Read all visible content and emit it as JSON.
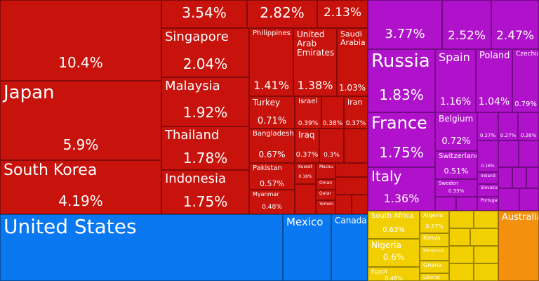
{
  "chart_data": {
    "type": "treemap",
    "groups": [
      {
        "color": "#c8120c",
        "items": [
          {
            "value": 10.4,
            "label": "10.4%"
          },
          {
            "name": "Japan",
            "value": 5.9,
            "label": "5.9%"
          },
          {
            "name": "South Korea",
            "value": 4.19,
            "label": "4.19%"
          },
          {
            "value": 3.54,
            "label": "3.54%"
          },
          {
            "value": 2.82,
            "label": "2.82%"
          },
          {
            "value": 2.13,
            "label": "2.13%"
          },
          {
            "name": "Singapore",
            "value": 2.04,
            "label": "2.04%"
          },
          {
            "name": "Malaysia",
            "value": 1.92,
            "label": "1.92%"
          },
          {
            "name": "Thailand",
            "value": 1.78,
            "label": "1.78%"
          },
          {
            "name": "Indonesia",
            "value": 1.75,
            "label": "1.75%"
          },
          {
            "name": "Philippines",
            "value": 1.41,
            "label": "1.41%"
          },
          {
            "name": "United Arab Emirates",
            "value": 1.38,
            "label": "1.38%"
          },
          {
            "name": "Saudi Arabia",
            "value": 1.03,
            "label": "1.03%"
          },
          {
            "name": "Turkey",
            "value": 0.71,
            "label": "0.71%"
          },
          {
            "name": "Israel",
            "value": 0.39,
            "label": "0.39%"
          },
          {
            "value": 0.38,
            "label": "0.38%"
          },
          {
            "name": "Iran",
            "value": 0.37,
            "label": "0.37%"
          },
          {
            "name": "Bangladesh",
            "value": 0.67,
            "label": "0.67%"
          },
          {
            "name": "Iraq",
            "value": 0.37,
            "label": "0.37%"
          },
          {
            "value": 0.3,
            "label": "0.3%"
          },
          {
            "name": "Pakistan",
            "value": 0.57,
            "label": "0.57%"
          },
          {
            "name": "Kuwait",
            "value": 0.18,
            "label": "0.18%"
          },
          {
            "name": "Macau",
            "value": 0.1
          },
          {
            "name": "Oman",
            "value": 0.08
          },
          {
            "name": "Myanmar",
            "value": 0.48,
            "label": "0.48%"
          },
          {
            "name": "Qatar",
            "value": 0.08
          },
          {
            "name": "Yemen",
            "value": 0.1
          }
        ]
      },
      {
        "color": "#b012cc",
        "items": [
          {
            "value": 3.77,
            "label": "3.77%"
          },
          {
            "value": 2.52,
            "label": "2.52%"
          },
          {
            "value": 2.47,
            "label": "2.47%"
          },
          {
            "name": "Russia",
            "value": 1.83,
            "label": "1.83%"
          },
          {
            "name": "Spain",
            "value": 1.16,
            "label": "1.16%"
          },
          {
            "name": "Poland",
            "value": 1.04,
            "label": "1.04%"
          },
          {
            "name": "Czechia",
            "value": 0.79,
            "label": "0.79%"
          },
          {
            "name": "France",
            "value": 1.75,
            "label": "1.75%"
          },
          {
            "name": "Italy",
            "value": 1.36,
            "label": "1.36%"
          },
          {
            "name": "Belgium",
            "value": 0.72,
            "label": "0.72%"
          },
          {
            "name": "Switzerland",
            "value": 0.51,
            "label": "0.51%"
          },
          {
            "name": "Sweden",
            "value": 0.33,
            "label": "0.33%"
          },
          {
            "value": 0.27,
            "label": "0.27%"
          },
          {
            "value": 0.27,
            "label": "0.27%"
          },
          {
            "value": 0.26,
            "label": "0.26%"
          },
          {
            "value": 0.16,
            "label": "0.16%"
          },
          {
            "name": "Ireland",
            "value": 0.1
          },
          {
            "name": "Slovakia",
            "value": 0.1
          },
          {
            "name": "Portugal",
            "value": 0.12
          }
        ]
      },
      {
        "color": "#0a78f0",
        "items": [
          {
            "name": "United States",
            "value": 8.7
          },
          {
            "name": "Mexico",
            "value": 1.5
          },
          {
            "name": "Canada",
            "value": 1.1
          }
        ]
      },
      {
        "color": "#f2cf00",
        "items": [
          {
            "name": "South Africa",
            "value": 0.63,
            "label": "0.63%"
          },
          {
            "name": "Nigeria",
            "value": 0.6,
            "label": "0.6%"
          },
          {
            "name": "Egypt",
            "value": 0.48,
            "label": "0.48%"
          },
          {
            "name": "Algeria",
            "value": 0.27,
            "label": "0.27%"
          },
          {
            "name": "Kenya",
            "value": 0.15
          },
          {
            "name": "Morocco",
            "value": 0.15
          },
          {
            "name": "Ghana",
            "value": 0.14
          },
          {
            "name": "Liberia",
            "value": 0.09
          }
        ]
      },
      {
        "color": "#f3910f",
        "items": [
          {
            "name": "Australia",
            "value": 1.4
          }
        ]
      }
    ]
  }
}
